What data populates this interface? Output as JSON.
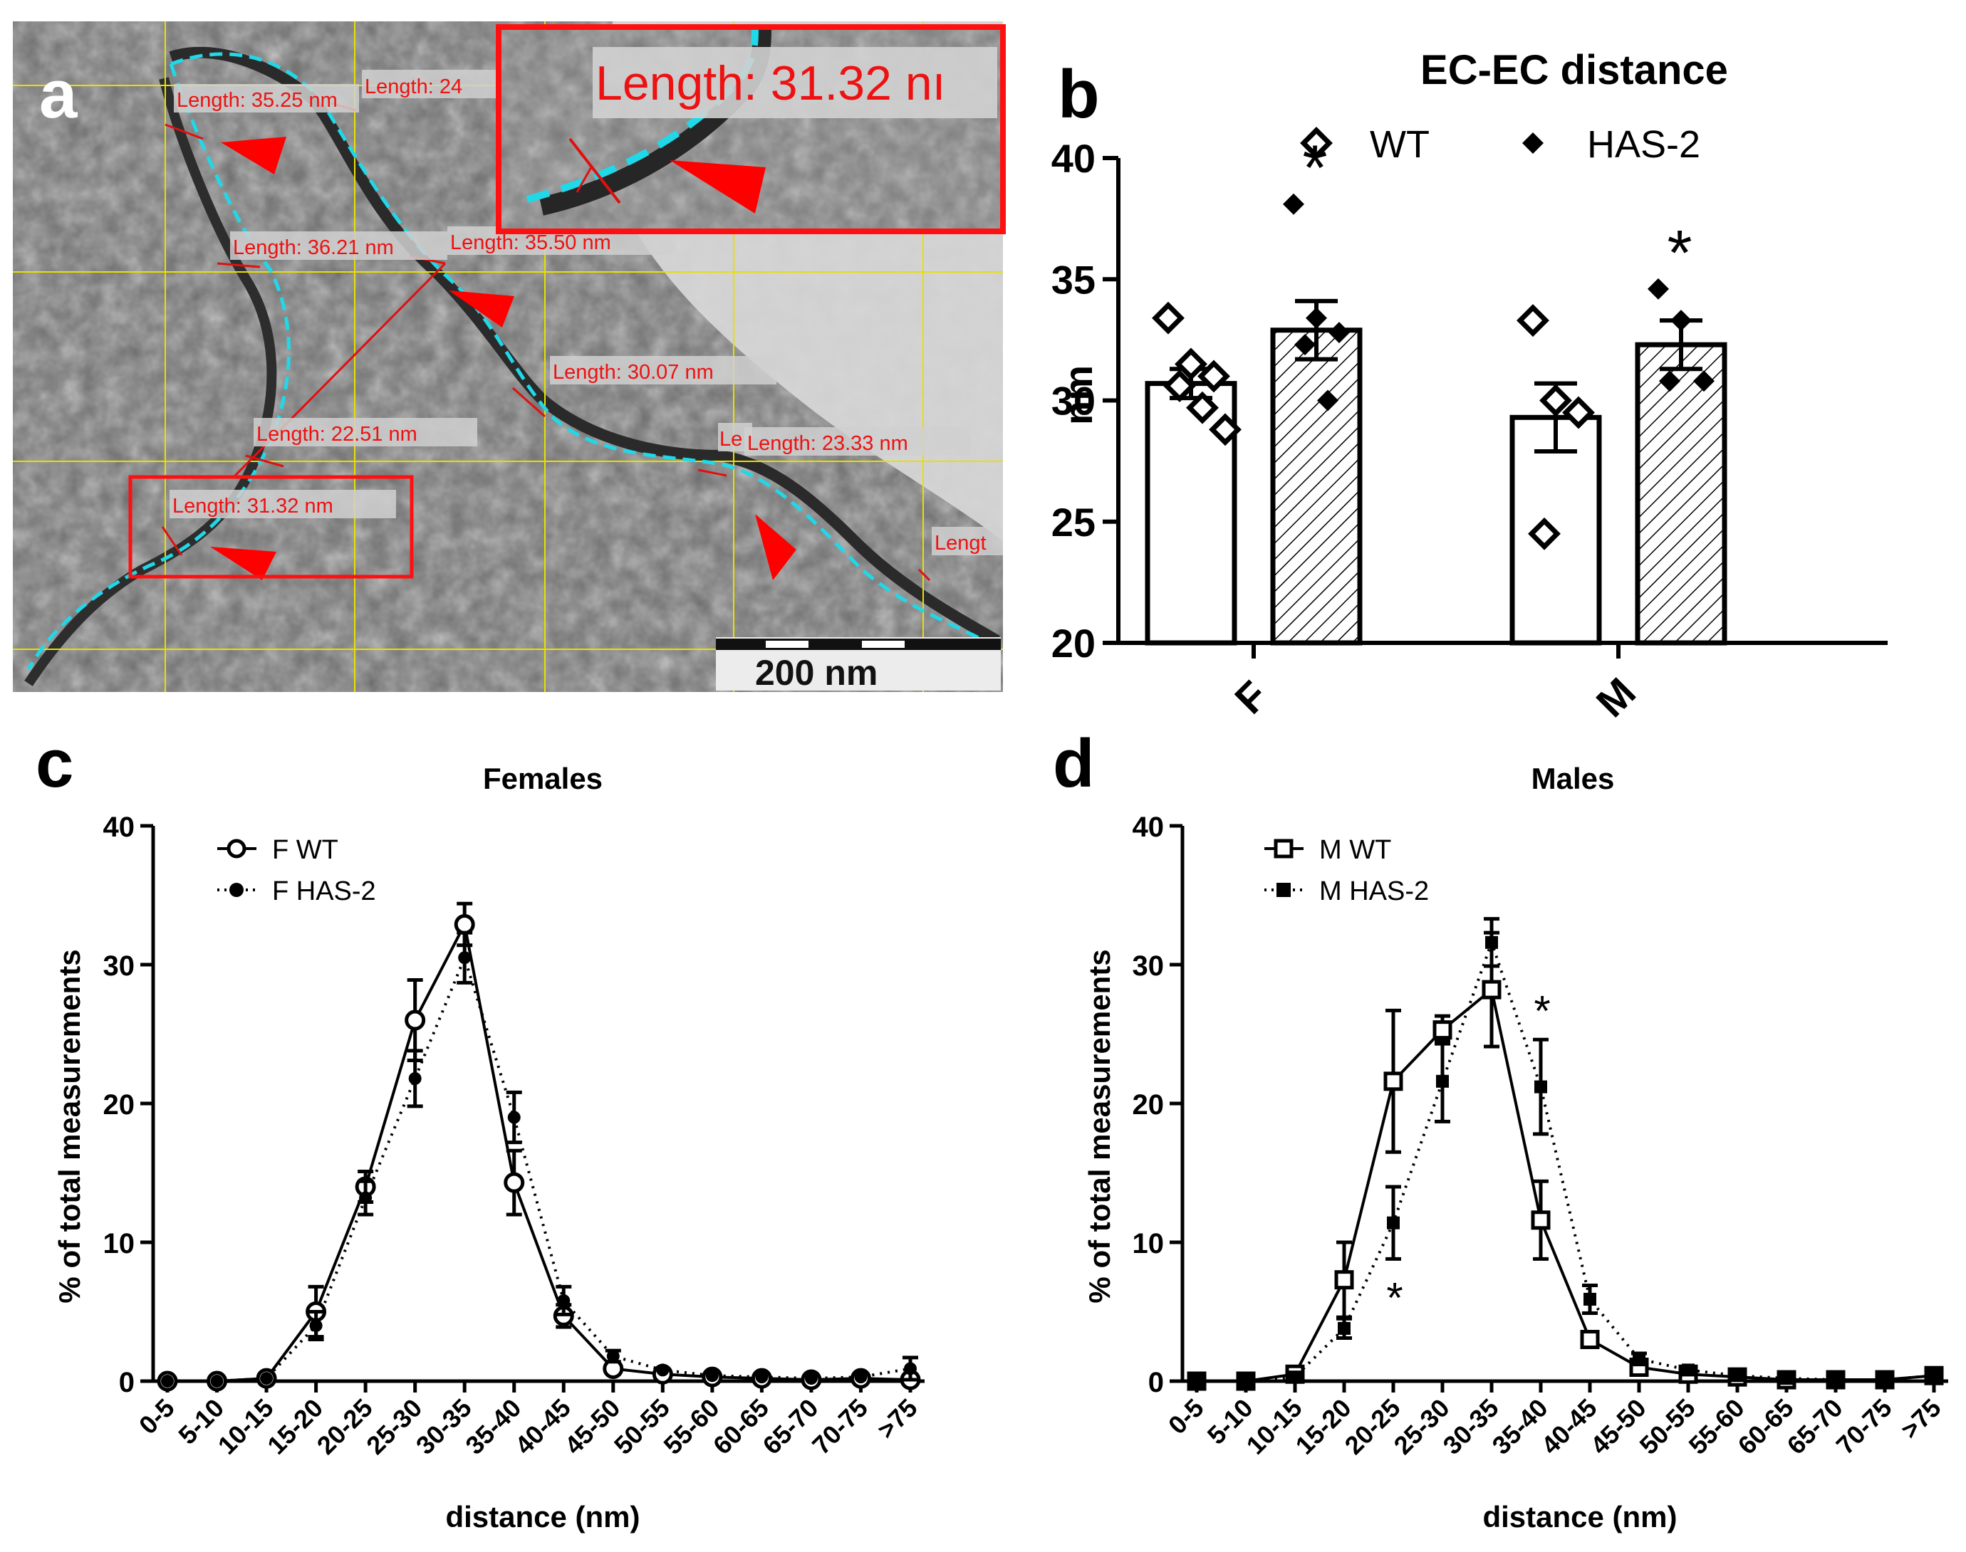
{
  "panel_labels": {
    "a": "a",
    "b": "b",
    "c": "c",
    "d": "d"
  },
  "micrograph": {
    "scale_bar_label": "200 nm",
    "measurements": [
      "Length: 35.25 nm",
      "Length: 24",
      "Length: 36.21 nm",
      "Length: 35.50 nm",
      "Length: 30.07 nm",
      "Length: 22.51 nm",
      "Le",
      "Length: 23.33 nm",
      "Length: 31.32 nm",
      "Lengt"
    ],
    "inset_label": "Length: 31.32 nı"
  },
  "chart_data": [
    {
      "type": "bar",
      "title": "EC-EC distance",
      "ylabel": "nm",
      "xlabel": "",
      "ylim": [
        20,
        40
      ],
      "yticks": [
        "20",
        "25",
        "30",
        "35",
        "40"
      ],
      "categories": [
        "F",
        "M"
      ],
      "legend": [
        "WT",
        "HAS-2"
      ],
      "series": [
        {
          "name": "WT",
          "values": [
            30.7,
            29.3
          ],
          "sem": [
            0.6,
            1.4
          ],
          "points": [
            [
              33.4,
              31.5,
              31.0,
              30.6,
              29.7,
              28.8
            ],
            [
              33.3,
              30.0,
              29.5,
              24.5
            ]
          ]
        },
        {
          "name": "HAS-2",
          "values": [
            32.9,
            32.3
          ],
          "sem": [
            1.2,
            1.0
          ],
          "points": [
            [
              38.1,
              33.4,
              32.8,
              32.3,
              30.0
            ],
            [
              34.6,
              33.3,
              30.8,
              30.8
            ]
          ]
        }
      ],
      "significance": [
        "*",
        "*"
      ]
    },
    {
      "type": "line",
      "title": "Females",
      "xlabel": "distance (nm)",
      "ylabel": "% of total measurements",
      "ylim": [
        0,
        40
      ],
      "yticks": [
        "0",
        "10",
        "20",
        "30",
        "40"
      ],
      "categories": [
        "0-5",
        "5-10",
        "10-15",
        "15-20",
        "20-25",
        "25-30",
        "30-35",
        "35-40",
        "40-45",
        "45-50",
        "50-55",
        "55-60",
        "60-65",
        "65-70",
        "70-75",
        ">75"
      ],
      "series": [
        {
          "name": "F WT",
          "values": [
            0,
            0,
            0.2,
            5.0,
            14.0,
            26.0,
            32.9,
            14.3,
            4.7,
            0.9,
            0.5,
            0.3,
            0.2,
            0.1,
            0.2,
            0.1
          ],
          "err": [
            0,
            0,
            0.2,
            1.8,
            1.1,
            2.9,
            1.5,
            2.3,
            0.8,
            0.3,
            0.2,
            0.2,
            0.1,
            0.1,
            0.1,
            0.1
          ]
        },
        {
          "name": "F HAS-2",
          "values": [
            0,
            0,
            0.2,
            4.0,
            13.2,
            21.8,
            30.5,
            19.0,
            5.8,
            1.8,
            0.8,
            0.4,
            0.3,
            0.2,
            0.3,
            0.9
          ],
          "err": [
            0,
            0,
            0.2,
            1.0,
            1.2,
            2.0,
            1.8,
            1.8,
            1.0,
            0.4,
            0.3,
            0.2,
            0.2,
            0.1,
            0.2,
            0.8
          ]
        }
      ]
    },
    {
      "type": "line",
      "title": "Males",
      "xlabel": "distance (nm)",
      "ylabel": "% of total measurements",
      "ylim": [
        0,
        40
      ],
      "yticks": [
        "0",
        "10",
        "20",
        "30",
        "40"
      ],
      "categories": [
        "0-5",
        "5-10",
        "10-15",
        "15-20",
        "20-25",
        "25-30",
        "30-35",
        "35-40",
        "40-45",
        "45-50",
        "50-55",
        "55-60",
        "60-65",
        "65-70",
        "70-75",
        ">75"
      ],
      "series": [
        {
          "name": "M WT",
          "values": [
            0,
            0,
            0.5,
            7.3,
            21.6,
            25.3,
            28.2,
            11.6,
            3.0,
            1.0,
            0.5,
            0.3,
            0.1,
            0.1,
            0.1,
            0.4
          ],
          "err": [
            0,
            0,
            0.3,
            2.7,
            5.1,
            1.0,
            4.1,
            2.8,
            0.5,
            0.4,
            0.2,
            0.2,
            0.1,
            0.1,
            0.1,
            0.2
          ]
        },
        {
          "name": "M HAS-2",
          "values": [
            0,
            0,
            0.3,
            3.8,
            11.4,
            21.6,
            31.6,
            21.2,
            5.9,
            1.6,
            0.8,
            0.4,
            0.2,
            0.1,
            0.1,
            0.4
          ],
          "err": [
            0,
            0,
            0.2,
            0.7,
            2.6,
            2.9,
            1.7,
            3.4,
            1.0,
            0.4,
            0.2,
            0.2,
            0.1,
            0.1,
            0.1,
            0.2
          ]
        }
      ],
      "significance": [
        {
          "category": "20-25",
          "label": "*",
          "position": "below"
        },
        {
          "category": "35-40",
          "label": "*",
          "position": "above"
        }
      ]
    }
  ]
}
